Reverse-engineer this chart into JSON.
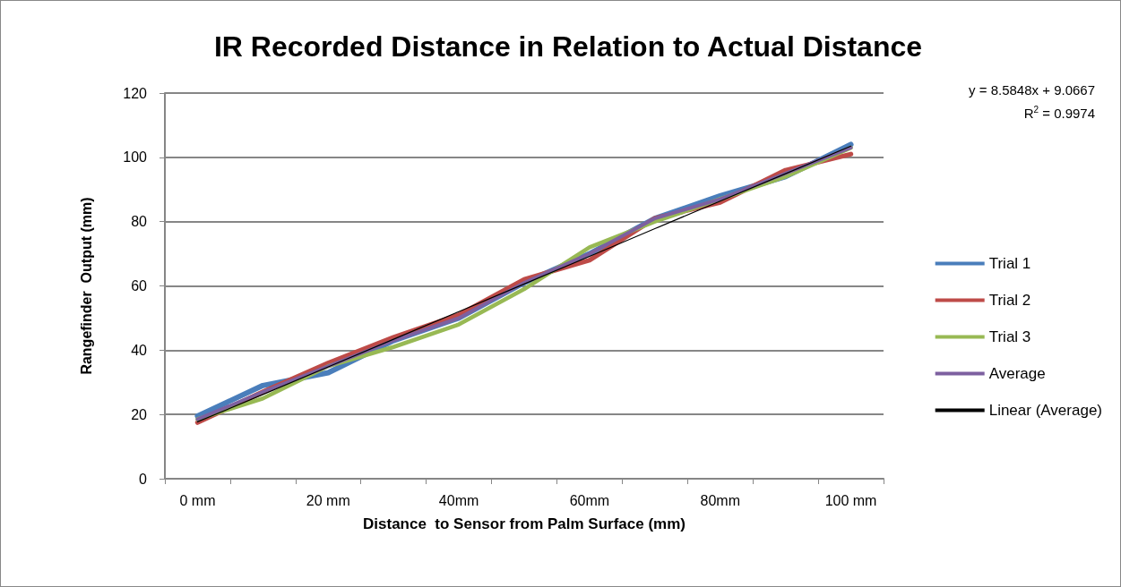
{
  "chart_data": {
    "type": "line",
    "title": "IR Recorded Distance in Relation to Actual Distance",
    "xlabel": "Distance  to Sensor from Palm Surface (mm)",
    "ylabel": "Rangefinder  Output (mm)",
    "categories": [
      "0 mm",
      null,
      "20 mm",
      null,
      "40mm",
      null,
      "60mm",
      null,
      "80mm",
      null,
      "100 mm"
    ],
    "series": [
      {
        "name": "Trial 1",
        "color": "#4a7ebb",
        "values": [
          19.5,
          29,
          33,
          43,
          50,
          61,
          70,
          81,
          88,
          94,
          104
        ]
      },
      {
        "name": "Trial 2",
        "color": "#be4b48",
        "values": [
          17.5,
          27,
          36,
          44,
          51,
          62,
          68,
          81,
          86,
          96,
          101
        ]
      },
      {
        "name": "Trial 3",
        "color": "#98b954",
        "values": [
          18.5,
          25,
          35,
          41,
          48,
          59,
          72,
          80,
          87,
          94,
          103
        ]
      },
      {
        "name": "Average",
        "color": "#7d60a0",
        "values": [
          18.5,
          27,
          35,
          43,
          50,
          61,
          70,
          81,
          87,
          95,
          103
        ]
      },
      {
        "name": "Linear (Average)",
        "color": "#000000",
        "values": [
          17.7,
          26.2,
          34.8,
          43.4,
          52.0,
          60.6,
          69.2,
          77.8,
          86.4,
          94.9,
          103.5
        ]
      }
    ],
    "annotations": [
      "y = 8.5848x + 9.0667",
      "R$^{2}$ = 0.9974"
    ],
    "ylim": [
      0,
      120
    ],
    "yticks": [
      0,
      20,
      40,
      60,
      80,
      100,
      120
    ],
    "grid": "y",
    "legend": "right",
    "marker": "none",
    "line_style": "solid"
  }
}
